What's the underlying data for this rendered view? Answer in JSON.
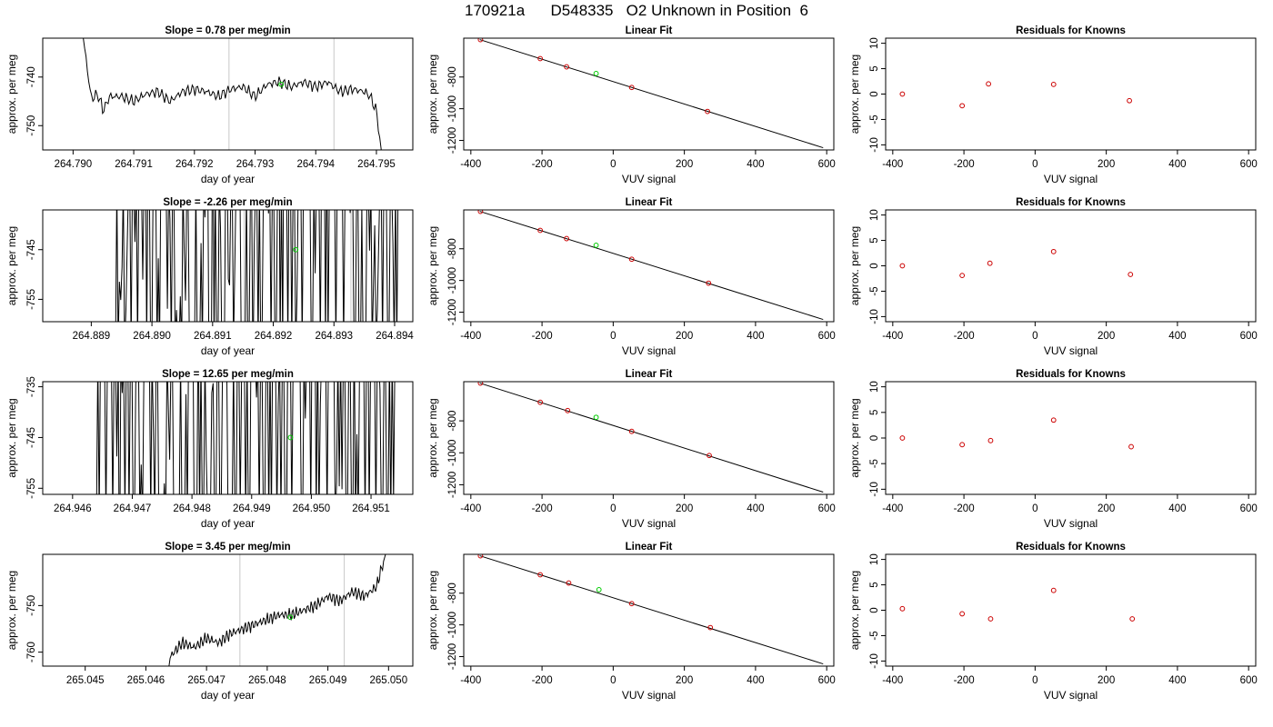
{
  "page": {
    "title": "170921a      D548335   O2 Unknown in Position  6"
  },
  "colors": {
    "trace": "#000000",
    "known_point": "#cc0000",
    "unknown_point": "#00cc00",
    "marker_line": "#c8c8c8"
  },
  "chart_data": [
    {
      "type": "line",
      "row": 0,
      "panel": "timeseries",
      "title": "Slope =  0.78  per meg/min",
      "xlabel": "day of year",
      "ylabel": "approx. per meg",
      "xlim": [
        264.7895,
        264.7956
      ],
      "ylim": [
        -755,
        -732
      ],
      "xticks": [
        "264.790",
        "264.791",
        "264.792",
        "264.793",
        "264.794",
        "264.795"
      ],
      "yticks": [
        "-750",
        "-740"
      ],
      "marker_x": [
        264.79257,
        264.7943
      ],
      "unknown_point": [
        264.79343,
        -741.5
      ],
      "trace_x_range": [
        264.7901,
        264.7951
      ],
      "trace_anchors": [
        [
          264.7901,
          -725
        ],
        [
          264.7902,
          -735
        ],
        [
          264.7903,
          -744.5
        ],
        [
          264.7904,
          -743.5
        ],
        [
          264.79045,
          -745
        ],
        [
          264.7905,
          -747
        ],
        [
          264.7906,
          -744
        ],
        [
          264.7908,
          -744
        ],
        [
          264.791,
          -745
        ],
        [
          264.7912,
          -743.5
        ],
        [
          264.7914,
          -743
        ],
        [
          264.7916,
          -745
        ],
        [
          264.7918,
          -743
        ],
        [
          264.792,
          -742.5
        ],
        [
          264.7922,
          -743
        ],
        [
          264.7924,
          -744
        ],
        [
          264.7926,
          -742.5
        ],
        [
          264.7928,
          -742
        ],
        [
          264.793,
          -744
        ],
        [
          264.7932,
          -741.5
        ],
        [
          264.7934,
          -741
        ],
        [
          264.7936,
          -742
        ],
        [
          264.7938,
          -741
        ],
        [
          264.794,
          -742
        ],
        [
          264.7942,
          -741
        ],
        [
          264.7944,
          -743
        ],
        [
          264.7946,
          -742.5
        ],
        [
          264.7948,
          -743
        ],
        [
          264.7949,
          -744
        ],
        [
          264.795,
          -747
        ],
        [
          264.7951,
          -757
        ]
      ],
      "trace_noise": 1.4,
      "trace_clip": false
    },
    {
      "type": "scatter",
      "row": 0,
      "panel": "fit",
      "title": "Linear Fit",
      "xlabel": "VUV signal",
      "ylabel": "approx. per meg",
      "xlim": [
        -420,
        620
      ],
      "ylim": [
        -1260,
        -555
      ],
      "xticks": [
        "-400",
        "-200",
        "0",
        "200",
        "400",
        "600"
      ],
      "yticks": [
        "-1200",
        "-1000",
        "-800"
      ],
      "line": [
        [
          -375,
          -564
        ],
        [
          590,
          -1246
        ]
      ],
      "known_points": [
        [
          -373,
          -564
        ],
        [
          -205,
          -684
        ],
        [
          -131,
          -736
        ],
        [
          52,
          -866
        ],
        [
          265,
          -1017
        ]
      ],
      "unknown_point": [
        -48,
        -778
      ]
    },
    {
      "type": "scatter",
      "row": 0,
      "panel": "residuals",
      "title": "Residuals for Knowns",
      "xlabel": "VUV signal",
      "ylabel": "approx. per meg",
      "xlim": [
        -420,
        620
      ],
      "ylim": [
        -11,
        11
      ],
      "xticks": [
        "-400",
        "-200",
        "0",
        "200",
        "400",
        "600"
      ],
      "yticks": [
        "-10",
        "-5",
        "0",
        "5",
        "10"
      ],
      "points": [
        [
          -373,
          0
        ],
        [
          -205,
          -2.3
        ],
        [
          -131,
          2
        ],
        [
          52,
          1.9
        ],
        [
          265,
          -1.3
        ]
      ]
    },
    {
      "type": "line",
      "row": 1,
      "panel": "timeseries",
      "title": "Slope =  -2.26  per meg/min",
      "xlabel": "day of year",
      "ylabel": "approx. per meg",
      "xlim": [
        264.8882,
        264.8943
      ],
      "ylim": [
        -759.5,
        -737
      ],
      "xticks": [
        "264.889",
        "264.890",
        "264.891",
        "264.892",
        "264.893",
        "264.894"
      ],
      "yticks": [
        "-755",
        "-745"
      ],
      "marker_x": [
        264.89152,
        264.89328
      ],
      "unknown_point": [
        264.89237,
        -745
      ],
      "trace_x_range": [
        264.8894,
        264.8941
      ],
      "trace_anchors": [
        [
          264.8894,
          -760
        ],
        [
          264.88945,
          -743
        ],
        [
          264.8895,
          -760
        ],
        [
          264.8896,
          -760
        ],
        [
          264.89,
          -720
        ],
        [
          264.8905,
          -760
        ],
        [
          264.891,
          -720
        ],
        [
          264.8915,
          -760
        ],
        [
          264.892,
          -720
        ],
        [
          264.8925,
          -745
        ],
        [
          264.893,
          -720
        ],
        [
          264.8935,
          -760
        ],
        [
          264.8941,
          -720
        ]
      ],
      "trace_noise": 28,
      "trace_clip": true
    },
    {
      "type": "scatter",
      "row": 1,
      "panel": "fit",
      "title": "Linear Fit",
      "xlabel": "VUV signal",
      "ylabel": "approx. per meg",
      "xlim": [
        -420,
        620
      ],
      "ylim": [
        -1260,
        -555
      ],
      "xticks": [
        "-400",
        "-200",
        "0",
        "200",
        "400",
        "600"
      ],
      "yticks": [
        "-1200",
        "-1000",
        "-800"
      ],
      "line": [
        [
          -375,
          -564
        ],
        [
          590,
          -1246
        ]
      ],
      "known_points": [
        [
          -373,
          -564
        ],
        [
          -205,
          -684
        ],
        [
          -131,
          -736
        ],
        [
          52,
          -866
        ],
        [
          268,
          -1017
        ]
      ],
      "unknown_point": [
        -48,
        -778
      ]
    },
    {
      "type": "scatter",
      "row": 1,
      "panel": "residuals",
      "title": "Residuals for Knowns",
      "xlabel": "VUV signal",
      "ylabel": "approx. per meg",
      "xlim": [
        -420,
        620
      ],
      "ylim": [
        -11,
        11
      ],
      "xticks": [
        "-400",
        "-200",
        "0",
        "200",
        "400",
        "600"
      ],
      "yticks": [
        "-10",
        "-5",
        "0",
        "5",
        "10"
      ],
      "points": [
        [
          -373,
          0
        ],
        [
          -205,
          -1.9
        ],
        [
          -127,
          0.5
        ],
        [
          52,
          2.8
        ],
        [
          268,
          -1.7
        ]
      ]
    },
    {
      "type": "line",
      "row": 2,
      "panel": "timeseries",
      "title": "Slope =  12.65  per meg/min",
      "xlabel": "day of year",
      "ylabel": "approx. per meg",
      "xlim": [
        264.9455,
        264.9517
      ],
      "ylim": [
        -756.2,
        -734
      ],
      "xticks": [
        "264.946",
        "264.947",
        "264.948",
        "264.949",
        "264.950",
        "264.951"
      ],
      "yticks": [
        "-755",
        "-745",
        "-735"
      ],
      "marker_x": [
        264.9496
      ],
      "unknown_point": [
        264.94965,
        -745
      ],
      "trace_x_range": [
        264.9464,
        264.9514
      ],
      "trace_anchors": [
        [
          264.9464,
          -747.8
        ],
        [
          264.94645,
          -720
        ],
        [
          264.9468,
          -760
        ],
        [
          264.947,
          -720
        ],
        [
          264.9475,
          -760
        ],
        [
          264.948,
          -720
        ],
        [
          264.9485,
          -760
        ],
        [
          264.949,
          -720
        ],
        [
          264.9495,
          -755
        ],
        [
          264.95,
          -720
        ],
        [
          264.9505,
          -760
        ],
        [
          264.951,
          -720
        ],
        [
          264.9514,
          -760
        ]
      ],
      "trace_noise": 28,
      "trace_clip": true
    },
    {
      "type": "scatter",
      "row": 2,
      "panel": "fit",
      "title": "Linear Fit",
      "xlabel": "VUV signal",
      "ylabel": "approx. per meg",
      "xlim": [
        -420,
        620
      ],
      "ylim": [
        -1260,
        -555
      ],
      "xticks": [
        "-400",
        "-200",
        "0",
        "200",
        "400",
        "600"
      ],
      "yticks": [
        "-1200",
        "-1000",
        "-800"
      ],
      "line": [
        [
          -375,
          -564
        ],
        [
          590,
          -1246
        ]
      ],
      "known_points": [
        [
          -373,
          -564
        ],
        [
          -205,
          -684
        ],
        [
          -128,
          -736
        ],
        [
          52,
          -866
        ],
        [
          270,
          -1017
        ]
      ],
      "unknown_point": [
        -48,
        -778
      ]
    },
    {
      "type": "scatter",
      "row": 2,
      "panel": "residuals",
      "title": "Residuals for Knowns",
      "xlabel": "VUV signal",
      "ylabel": "approx. per meg",
      "xlim": [
        -420,
        620
      ],
      "ylim": [
        -11,
        11
      ],
      "xticks": [
        "-400",
        "-200",
        "0",
        "200",
        "400",
        "600"
      ],
      "yticks": [
        "-10",
        "-5",
        "0",
        "5",
        "10"
      ],
      "points": [
        [
          -373,
          0
        ],
        [
          -205,
          -1.3
        ],
        [
          -125,
          -0.5
        ],
        [
          52,
          3.5
        ],
        [
          270,
          -1.7
        ]
      ]
    },
    {
      "type": "line",
      "row": 3,
      "panel": "timeseries",
      "title": "Slope =  3.45  per meg/min",
      "xlabel": "day of year",
      "ylabel": "approx. per meg",
      "xlim": [
        265.0443,
        265.0504
      ],
      "ylim": [
        -763,
        -739
      ],
      "xticks": [
        "265.045",
        "265.046",
        "265.047",
        "265.048",
        "265.049",
        "265.050"
      ],
      "yticks": [
        "-760",
        "-750"
      ],
      "marker_x": [
        265.04755,
        265.04927
      ],
      "unknown_point": [
        265.04838,
        -752.5
      ],
      "trace_x_range": [
        265.04635,
        265.04995
      ],
      "trace_anchors": [
        [
          265.04635,
          -765
        ],
        [
          265.0464,
          -761
        ],
        [
          265.0466,
          -758
        ],
        [
          265.0468,
          -759
        ],
        [
          265.047,
          -757
        ],
        [
          265.0472,
          -758
        ],
        [
          265.0474,
          -756
        ],
        [
          265.0476,
          -755
        ],
        [
          265.0478,
          -754
        ],
        [
          265.048,
          -753
        ],
        [
          265.0482,
          -752
        ],
        [
          265.0484,
          -752
        ],
        [
          265.0486,
          -751
        ],
        [
          265.0488,
          -750
        ],
        [
          265.049,
          -748
        ],
        [
          265.0492,
          -749
        ],
        [
          265.0494,
          -747
        ],
        [
          265.0496,
          -748
        ],
        [
          265.0498,
          -746
        ],
        [
          265.04995,
          -739
        ]
      ],
      "trace_noise": 1.6,
      "trace_clip": false
    },
    {
      "type": "scatter",
      "row": 3,
      "panel": "fit",
      "title": "Linear Fit",
      "xlabel": "VUV signal",
      "ylabel": "approx. per meg",
      "xlim": [
        -420,
        620
      ],
      "ylim": [
        -1260,
        -555
      ],
      "xticks": [
        "-400",
        "-200",
        "0",
        "200",
        "400",
        "600"
      ],
      "yticks": [
        "-1200",
        "-1000",
        "-800"
      ],
      "line": [
        [
          -375,
          -564
        ],
        [
          590,
          -1246
        ]
      ],
      "known_points": [
        [
          -373,
          -564
        ],
        [
          -205,
          -684
        ],
        [
          -125,
          -736
        ],
        [
          52,
          -866
        ],
        [
          273,
          -1017
        ]
      ],
      "unknown_point": [
        -40,
        -778
      ]
    },
    {
      "type": "scatter",
      "row": 3,
      "panel": "residuals",
      "title": "Residuals for Knowns",
      "xlabel": "VUV signal",
      "ylabel": "approx. per meg",
      "xlim": [
        -420,
        620
      ],
      "ylim": [
        -11,
        11
      ],
      "xticks": [
        "-400",
        "-200",
        "0",
        "200",
        "400",
        "600"
      ],
      "yticks": [
        "-10",
        "-5",
        "0",
        "5",
        "10"
      ],
      "points": [
        [
          -373,
          0.3
        ],
        [
          -205,
          -0.7
        ],
        [
          -125,
          -1.7
        ],
        [
          52,
          3.9
        ],
        [
          273,
          -1.7
        ]
      ]
    }
  ]
}
